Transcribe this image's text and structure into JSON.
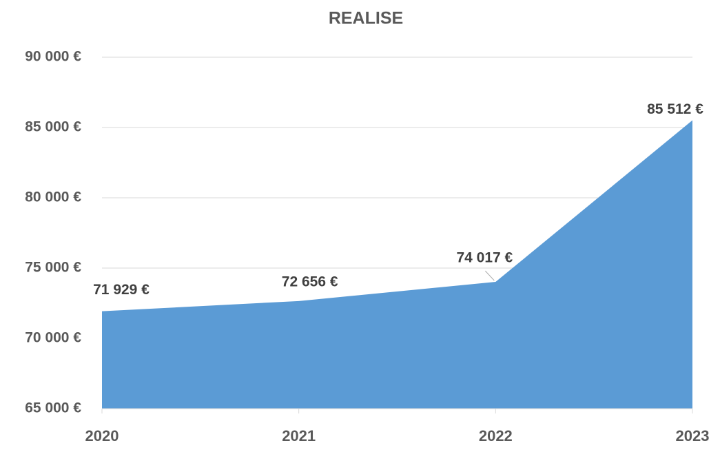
{
  "chart_data": {
    "type": "area",
    "title": "REALISE",
    "categories": [
      "2020",
      "2021",
      "2022",
      "2023"
    ],
    "values": [
      71929,
      72656,
      74017,
      85512
    ],
    "value_labels": [
      "71 929 €",
      "72 656 €",
      "74 017 €",
      "85 512 €"
    ],
    "color": "#5b9bd5",
    "ylim": [
      65000,
      90000
    ],
    "yticks": [
      {
        "value": 65000,
        "label": "65 000 €"
      },
      {
        "value": 70000,
        "label": "70 000 €"
      },
      {
        "value": 75000,
        "label": "75 000 €"
      },
      {
        "value": 80000,
        "label": "80 000 €"
      },
      {
        "value": 85000,
        "label": "85 000 €"
      },
      {
        "value": 90000,
        "label": "90 000 €"
      }
    ],
    "grid": true
  }
}
